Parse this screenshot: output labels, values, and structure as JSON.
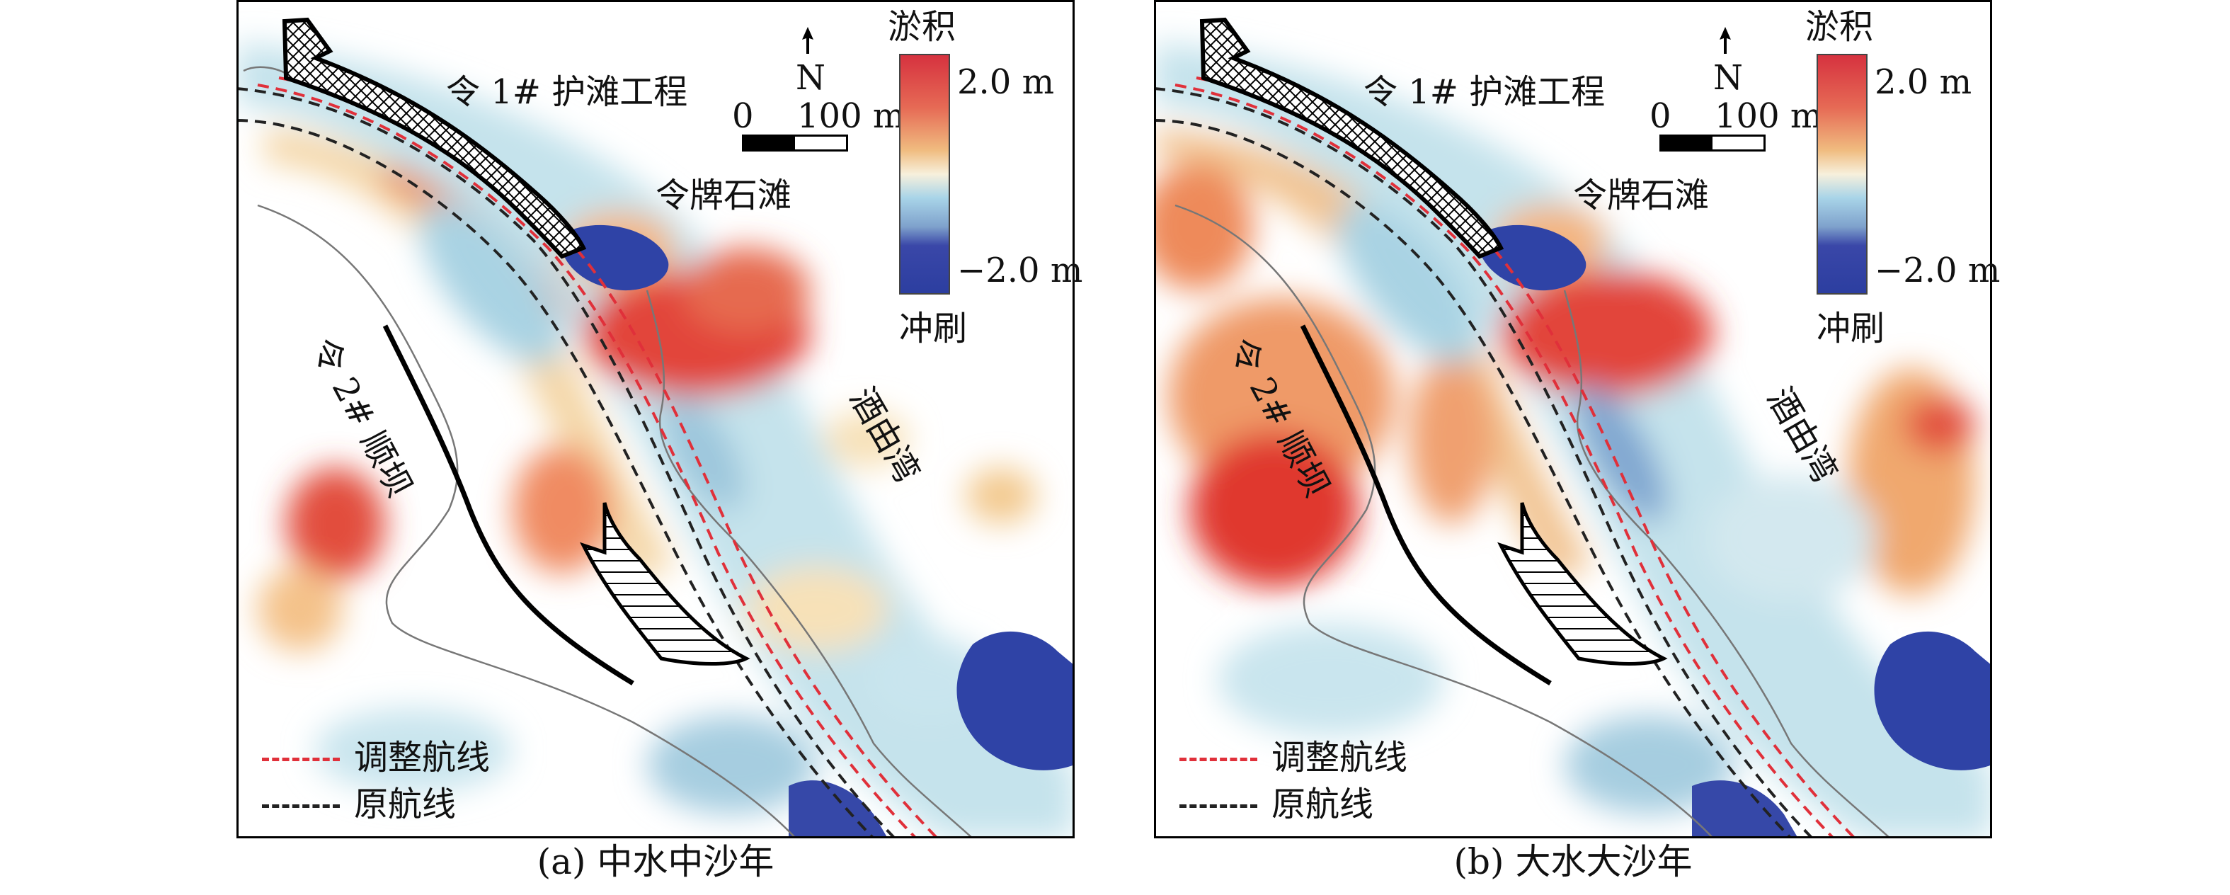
{
  "panels": [
    {
      "caption": "(a) 中水中沙年",
      "labels": {
        "dam1": "令 1# 护滩工程",
        "dam2": "令 2# 顺坝",
        "beach": "令牌石滩",
        "bay": "酒由湾"
      }
    },
    {
      "caption": "(b) 大水大沙年",
      "labels": {
        "dam1": "令 1# 护滩工程",
        "dam2": "令 2# 顺坝",
        "beach": "令牌石滩",
        "bay": "酒由湾"
      }
    }
  ],
  "north": "N",
  "scale": {
    "zero": "0",
    "length": "100 m"
  },
  "colorbar": {
    "top_label": "淤积",
    "bottom_label": "冲刷",
    "max": "2.0 m",
    "min": "−2.0 m",
    "colors": {
      "deposition": "#d6323f",
      "neutral": "#ffffff",
      "erosion": "#2c3ea0"
    }
  },
  "legend": [
    {
      "label": "调整航线",
      "color": "#e0303a"
    },
    {
      "label": "原航线",
      "color": "#222222"
    }
  ]
}
